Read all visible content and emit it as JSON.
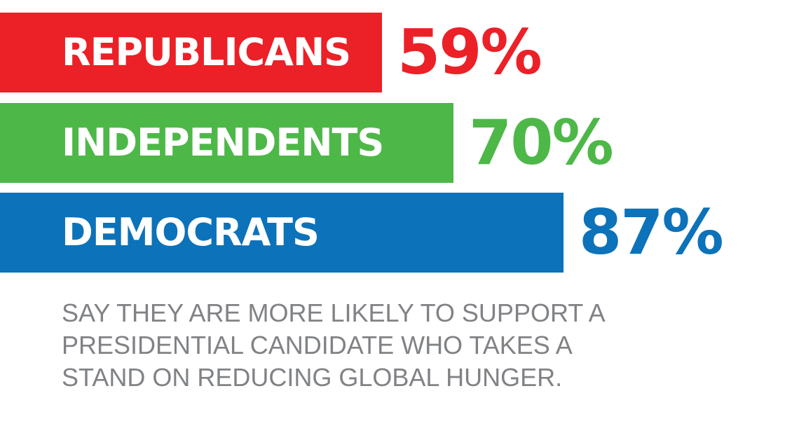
{
  "chart_data": {
    "type": "bar",
    "orientation": "horizontal",
    "categories": [
      "REPUBLICANS",
      "INDEPENDENTS",
      "DEMOCRATS"
    ],
    "values": [
      59,
      70,
      87
    ],
    "value_labels": [
      "59%",
      "70%",
      "87%"
    ],
    "colors": [
      "#ec2027",
      "#4db848",
      "#0c72b9"
    ],
    "unit": "%",
    "xlim": [
      0,
      100
    ],
    "grid": false,
    "legend": "none"
  },
  "caption": {
    "lines": [
      "SAY THEY ARE MORE LIKELY TO SUPPORT A",
      "PRESIDENTIAL CANDIDATE WHO TAKES A",
      "STAND ON REDUCING GLOBAL HUNGER."
    ],
    "color": "#808285"
  }
}
